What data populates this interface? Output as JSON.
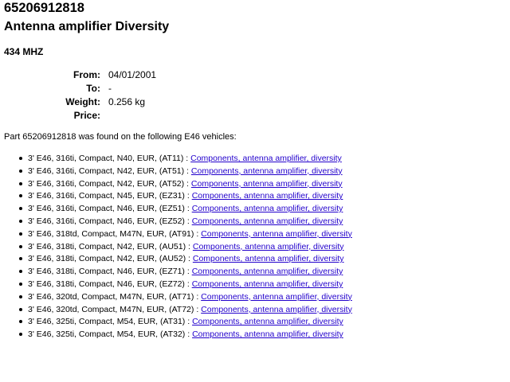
{
  "part": {
    "number": "65206912818",
    "name": "Antenna amplifier Diversity",
    "description": "434 MHZ"
  },
  "info": [
    {
      "label": "From:",
      "value": "04/01/2001"
    },
    {
      "label": "To:",
      "value": "-"
    },
    {
      "label": "Weight:",
      "value": "0.256 kg"
    },
    {
      "label": "Price:",
      "value": ""
    }
  ],
  "found_text": "Part 65206912818 was found on the following E46 vehicles:",
  "link_color": "#2200cc",
  "vehicles": [
    {
      "model": "3' E46, 316ti, Compact, N40, EUR, (AT11) :",
      "link": "Components, antenna amplifier, diversity"
    },
    {
      "model": "3' E46, 316ti, Compact, N42, EUR, (AT51) :",
      "link": "Components, antenna amplifier, diversity"
    },
    {
      "model": "3' E46, 316ti, Compact, N42, EUR, (AT52) :",
      "link": "Components, antenna amplifier, diversity"
    },
    {
      "model": "3' E46, 316ti, Compact, N45, EUR, (EZ31) :",
      "link": "Components, antenna amplifier, diversity"
    },
    {
      "model": "3' E46, 316ti, Compact, N46, EUR, (EZ51) :",
      "link": "Components, antenna amplifier, diversity"
    },
    {
      "model": "3' E46, 316ti, Compact, N46, EUR, (EZ52) :",
      "link": "Components, antenna amplifier, diversity"
    },
    {
      "model": "3' E46, 318td, Compact, M47N, EUR, (AT91) :",
      "link": "Components, antenna amplifier, diversity"
    },
    {
      "model": "3' E46, 318ti, Compact, N42, EUR, (AU51) :",
      "link": "Components, antenna amplifier, diversity"
    },
    {
      "model": "3' E46, 318ti, Compact, N42, EUR, (AU52) :",
      "link": "Components, antenna amplifier, diversity"
    },
    {
      "model": "3' E46, 318ti, Compact, N46, EUR, (EZ71) :",
      "link": "Components, antenna amplifier, diversity"
    },
    {
      "model": "3' E46, 318ti, Compact, N46, EUR, (EZ72) :",
      "link": "Components, antenna amplifier, diversity"
    },
    {
      "model": "3' E46, 320td, Compact, M47N, EUR, (AT71) :",
      "link": "Components, antenna amplifier, diversity"
    },
    {
      "model": "3' E46, 320td, Compact, M47N, EUR, (AT72) :",
      "link": "Components, antenna amplifier, diversity"
    },
    {
      "model": "3' E46, 325ti, Compact, M54, EUR, (AT31) :",
      "link": "Components, antenna amplifier, diversity"
    },
    {
      "model": "3' E46, 325ti, Compact, M54, EUR, (AT32) :",
      "link": "Components, antenna amplifier, diversity"
    }
  ]
}
